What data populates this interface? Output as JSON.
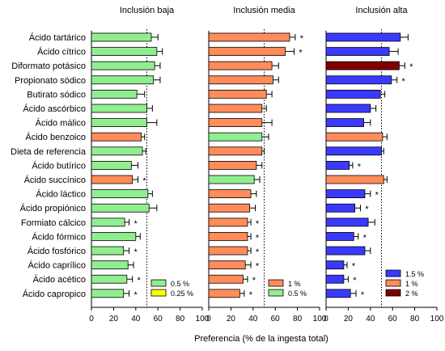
{
  "chart_data": {
    "type": "bar",
    "orientation": "horizontal",
    "xlabel": "Preferencia (% de la ingesta total)",
    "xlim": [
      0,
      100
    ],
    "xticks": [
      0,
      20,
      40,
      60,
      80,
      100
    ],
    "reference_line": 50,
    "categories": [
      "Ácido tartárico",
      "Ácido cítrico",
      "Diformato potásico",
      "Propionato sódico",
      "Butirato sódico",
      "Ácido ascórbico",
      "Ácido málico",
      "Ácido benzoico",
      "Dieta de referencia",
      "Ácido butírico",
      "Ácido succínico",
      "Ácido láctico",
      "Ácido propiónico",
      "Formiato cálcico",
      "Ácido fórmico",
      "Ácido fosfórico",
      "Ácido caprílico",
      "Ácido acético",
      "Ácido capropico"
    ],
    "panels": [
      {
        "title": "Inclusión baja",
        "values": [
          54,
          59,
          57,
          56,
          41,
          50,
          50,
          45,
          46,
          36,
          37,
          51,
          52,
          30,
          40,
          29,
          33,
          32,
          29
        ],
        "errors": [
          6,
          5,
          5,
          6,
          7,
          5,
          9,
          3,
          3,
          6,
          5,
          4,
          7,
          4,
          4,
          5,
          5,
          5,
          5
        ],
        "dose": [
          "low",
          "low",
          "low",
          "low",
          "low",
          "low",
          "low",
          "mid",
          "low",
          "low",
          "mid",
          "low",
          "low",
          "low",
          "low",
          "low",
          "low",
          "low",
          "low"
        ],
        "signif": [
          false,
          false,
          false,
          false,
          false,
          false,
          false,
          false,
          false,
          false,
          true,
          false,
          false,
          true,
          false,
          true,
          false,
          true,
          true
        ],
        "legend": [
          {
            "key": "low",
            "label": "0.5 %",
            "color": "#90ee90"
          },
          {
            "key": "mid",
            "label": "0.25 %",
            "color": "#ffff00"
          }
        ]
      },
      {
        "title": "Inclusión media",
        "values": [
          73,
          69,
          57,
          58,
          52,
          48,
          48,
          48,
          48,
          43,
          41,
          38,
          37,
          35,
          35,
          35,
          33,
          31,
          28
        ],
        "errors": [
          5,
          8,
          6,
          5,
          5,
          4,
          9,
          6,
          2,
          5,
          5,
          5,
          5,
          3,
          3,
          3,
          5,
          4,
          4
        ],
        "dose": [
          "mid",
          "mid",
          "mid",
          "mid",
          "mid",
          "mid",
          "mid",
          "low",
          "mid",
          "mid",
          "low",
          "mid",
          "mid",
          "mid",
          "mid",
          "mid",
          "mid",
          "mid",
          "mid"
        ],
        "signif": [
          true,
          true,
          false,
          false,
          false,
          false,
          false,
          false,
          false,
          false,
          false,
          false,
          false,
          true,
          true,
          true,
          true,
          true,
          true
        ],
        "legend": [
          {
            "key": "mid",
            "label": "1 %",
            "color": "#ff8c5a"
          },
          {
            "key": "low",
            "label": "0.5 %",
            "color": "#90ee90"
          }
        ]
      },
      {
        "title": "Inclusión alta",
        "values": [
          67,
          57,
          66,
          59,
          49,
          40,
          34,
          51,
          50,
          21,
          52,
          35,
          26,
          38,
          25,
          35,
          16,
          16,
          22
        ],
        "errors": [
          7,
          8,
          5,
          5,
          4,
          5,
          6,
          4,
          2,
          3,
          3,
          5,
          5,
          6,
          4,
          5,
          3,
          4,
          5
        ],
        "dose": [
          "high",
          "high",
          "top",
          "high",
          "high",
          "high",
          "high",
          "mid",
          "high",
          "high",
          "mid",
          "high",
          "high",
          "high",
          "high",
          "high",
          "high",
          "high",
          "high"
        ],
        "signif": [
          false,
          false,
          true,
          true,
          false,
          false,
          false,
          false,
          false,
          true,
          false,
          true,
          true,
          false,
          true,
          false,
          true,
          true,
          true
        ],
        "legend": [
          {
            "key": "high",
            "label": "1.5 %",
            "color": "#3a3aff"
          },
          {
            "key": "mid",
            "label": "1 %",
            "color": "#ff8c5a"
          },
          {
            "key": "top",
            "label": "2 %",
            "color": "#800000"
          }
        ]
      }
    ]
  }
}
